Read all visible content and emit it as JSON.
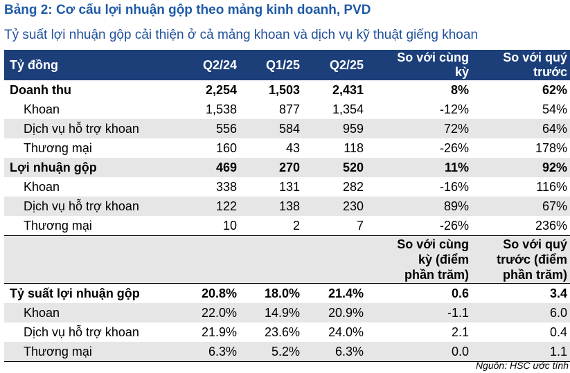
{
  "title": "Bảng 2: Cơ cấu lợi nhuận gộp theo mảng kinh doanh, PVD",
  "subtitle": "Tỷ suất lợi nhuận gộp cải thiện ở cả mảng khoan và dịch vụ kỹ thuật giếng khoan",
  "header": {
    "unit": "Tỷ đồng",
    "q2_24": "Q2/24",
    "q1_25": "Q1/25",
    "q2_25": "Q2/25",
    "yoy_l1": "So với cùng",
    "yoy_l2": "kỳ",
    "qoq_l1": "So với quý",
    "qoq_l2": "trước"
  },
  "rows": [
    {
      "label": "Doanh thu",
      "q2_24": "2,254",
      "q1_25": "1,503",
      "q2_25": "2,431",
      "yoy": "8%",
      "qoq": "62%"
    },
    {
      "label": "Khoan",
      "q2_24": "1,538",
      "q1_25": "877",
      "q2_25": "1,354",
      "yoy": "-12%",
      "qoq": "54%"
    },
    {
      "label": "Dịch vụ hỗ trợ khoan",
      "q2_24": "556",
      "q1_25": "584",
      "q2_25": "959",
      "yoy": "72%",
      "qoq": "64%"
    },
    {
      "label": "Thương mại",
      "q2_24": "160",
      "q1_25": "43",
      "q2_25": "118",
      "yoy": "-26%",
      "qoq": "178%"
    },
    {
      "label": "Lợi nhuận gộp",
      "q2_24": "469",
      "q1_25": "270",
      "q2_25": "520",
      "yoy": "11%",
      "qoq": "92%"
    },
    {
      "label": "Khoan",
      "q2_24": "338",
      "q1_25": "131",
      "q2_25": "282",
      "yoy": "-16%",
      "qoq": "116%"
    },
    {
      "label": "Dịch vụ hỗ trợ khoan",
      "q2_24": "122",
      "q1_25": "138",
      "q2_25": "230",
      "yoy": "89%",
      "qoq": "67%"
    },
    {
      "label": "Thương mại",
      "q2_24": "10",
      "q1_25": "2",
      "q2_25": "7",
      "yoy": "-26%",
      "qoq": "236%"
    }
  ],
  "mid_header": {
    "yoy_l1": "So với cùng",
    "yoy_l2": "kỳ (điểm",
    "yoy_l3": "phần trăm)",
    "qoq_l1": "So với quý",
    "qoq_l2": "trước (điểm",
    "qoq_l3": "phần trăm)"
  },
  "margin_rows": [
    {
      "label": "Tỷ suất lợi nhuận gộp",
      "q2_24": "20.8%",
      "q1_25": "18.0%",
      "q2_25": "21.4%",
      "yoy": "0.6",
      "qoq": "3.4"
    },
    {
      "label": "Khoan",
      "q2_24": "22.0%",
      "q1_25": "14.9%",
      "q2_25": "20.9%",
      "yoy": "-1.1",
      "qoq": "6.0"
    },
    {
      "label": "Dịch vụ hỗ trợ khoan",
      "q2_24": "21.9%",
      "q1_25": "23.6%",
      "q2_25": "24.0%",
      "yoy": "2.1",
      "qoq": "0.4"
    },
    {
      "label": "Thương mại",
      "q2_24": "6.3%",
      "q1_25": "5.2%",
      "q2_25": "6.3%",
      "yoy": "0.0",
      "qoq": "1.1"
    }
  ],
  "source": "Nguồn: HSC ước tính"
}
